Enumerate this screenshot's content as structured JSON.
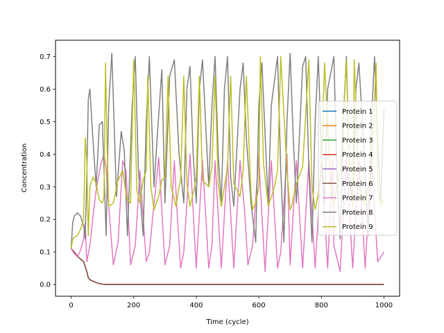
{
  "chart_data": {
    "type": "line",
    "xlabel": "Time (cycle)",
    "ylabel": "Concentration",
    "xlim": [
      -50,
      1050
    ],
    "ylim": [
      -0.036,
      0.75
    ],
    "xticks": [
      0,
      200,
      400,
      600,
      800,
      1000
    ],
    "xtick_labels": [
      "0",
      "200",
      "400",
      "600",
      "800",
      "1000"
    ],
    "yticks": [
      0.0,
      0.1,
      0.2,
      0.3,
      0.4,
      0.5,
      0.6,
      0.7
    ],
    "ytick_labels": [
      "0.0",
      "0.1",
      "0.2",
      "0.3",
      "0.4",
      "0.5",
      "0.6",
      "0.7"
    ],
    "grid": false,
    "legend_position": "center-right",
    "series": [
      {
        "name": "Protein 1",
        "color": "#1f77b4",
        "x": [
          0,
          10,
          20,
          30,
          40,
          50,
          55,
          60,
          70,
          80,
          90,
          100,
          110,
          150,
          300,
          500,
          700,
          900,
          1000
        ],
        "y": [
          0.11,
          0.1,
          0.087,
          0.078,
          0.07,
          0.04,
          0.02,
          0.015,
          0.01,
          0.006,
          0.003,
          0.001,
          0.0,
          0.0,
          0.0,
          0.0,
          0.0,
          0.0,
          0.0
        ]
      },
      {
        "name": "Protein 2",
        "color": "#ff7f0e",
        "x": [
          0,
          10,
          20,
          30,
          40,
          50,
          55,
          60,
          70,
          80,
          90,
          100,
          110,
          150,
          300,
          500,
          700,
          900,
          1000
        ],
        "y": [
          0.11,
          0.1,
          0.087,
          0.078,
          0.07,
          0.04,
          0.02,
          0.015,
          0.01,
          0.006,
          0.003,
          0.001,
          0.0,
          0.0,
          0.0,
          0.0,
          0.0,
          0.0,
          0.0
        ]
      },
      {
        "name": "Protein 3",
        "color": "#2ca02c",
        "x": [
          0,
          10,
          20,
          30,
          40,
          50,
          55,
          60,
          70,
          80,
          90,
          100,
          110,
          150,
          300,
          500,
          700,
          900,
          1000
        ],
        "y": [
          0.11,
          0.1,
          0.087,
          0.078,
          0.07,
          0.04,
          0.02,
          0.015,
          0.01,
          0.006,
          0.003,
          0.001,
          0.0,
          0.0,
          0.0,
          0.0,
          0.0,
          0.0,
          0.0
        ]
      },
      {
        "name": "Protein 4",
        "color": "#d62728",
        "x": [
          0,
          10,
          20,
          30,
          40,
          50,
          55,
          60,
          70,
          80,
          90,
          100,
          110,
          150,
          300,
          500,
          700,
          900,
          1000
        ],
        "y": [
          0.11,
          0.1,
          0.087,
          0.078,
          0.07,
          0.04,
          0.02,
          0.015,
          0.01,
          0.006,
          0.003,
          0.001,
          0.0,
          0.0,
          0.0,
          0.0,
          0.0,
          0.0,
          0.0
        ]
      },
      {
        "name": "Protein 5",
        "color": "#9467bd",
        "x": [
          0,
          10,
          20,
          30,
          40,
          50,
          55,
          60,
          70,
          80,
          90,
          100,
          110,
          150,
          300,
          500,
          700,
          900,
          1000
        ],
        "y": [
          0.11,
          0.1,
          0.087,
          0.078,
          0.07,
          0.04,
          0.02,
          0.015,
          0.01,
          0.006,
          0.003,
          0.001,
          0.0,
          0.0,
          0.0,
          0.0,
          0.0,
          0.0,
          0.0
        ]
      },
      {
        "name": "Protein 6",
        "color": "#8c564b",
        "x": [
          0,
          10,
          20,
          30,
          40,
          50,
          55,
          60,
          70,
          80,
          90,
          100,
          110,
          150,
          300,
          500,
          700,
          900,
          1000
        ],
        "y": [
          0.11,
          0.1,
          0.087,
          0.078,
          0.07,
          0.04,
          0.02,
          0.015,
          0.01,
          0.006,
          0.003,
          0.001,
          0.0,
          0.0,
          0.0,
          0.0,
          0.0,
          0.0,
          0.0
        ]
      },
      {
        "name": "Protein 7",
        "color": "#e377c2",
        "x": [
          0,
          10,
          20,
          30,
          40,
          45,
          50,
          60,
          70,
          80,
          95,
          105,
          112,
          120,
          135,
          150,
          165,
          175,
          180,
          190,
          205,
          220,
          240,
          250,
          260,
          280,
          300,
          315,
          330,
          340,
          350,
          360,
          380,
          400,
          420,
          440,
          450,
          460,
          480,
          500,
          520,
          540,
          555,
          565,
          580,
          600,
          605,
          620,
          640,
          660,
          670,
          690,
          700,
          720,
          740,
          760,
          780,
          800,
          820,
          835,
          840,
          860,
          880,
          900,
          920,
          940,
          960,
          980,
          1000
        ],
        "y": [
          0.11,
          0.095,
          0.085,
          0.105,
          0.14,
          0.19,
          0.07,
          0.12,
          0.21,
          0.29,
          0.37,
          0.4,
          0.36,
          0.24,
          0.06,
          0.13,
          0.38,
          0.35,
          0.27,
          0.06,
          0.12,
          0.35,
          0.07,
          0.1,
          0.2,
          0.39,
          0.06,
          0.12,
          0.38,
          0.2,
          0.05,
          0.1,
          0.4,
          0.05,
          0.38,
          0.05,
          0.12,
          0.38,
          0.05,
          0.38,
          0.05,
          0.38,
          0.22,
          0.06,
          0.12,
          0.4,
          0.3,
          0.04,
          0.38,
          0.05,
          0.1,
          0.4,
          0.06,
          0.38,
          0.05,
          0.38,
          0.05,
          0.38,
          0.05,
          0.38,
          0.12,
          0.04,
          0.39,
          0.05,
          0.38,
          0.05,
          0.39,
          0.07,
          0.1
        ]
      },
      {
        "name": "Protein 8",
        "color": "#7f7f7f",
        "x": [
          0,
          5,
          10,
          20,
          30,
          40,
          45,
          50,
          55,
          60,
          70,
          80,
          90,
          100,
          112,
          120,
          130,
          145,
          160,
          170,
          180,
          195,
          205,
          215,
          230,
          240,
          250,
          265,
          275,
          290,
          300,
          315,
          330,
          345,
          360,
          370,
          380,
          390,
          400,
          410,
          420,
          440,
          450,
          460,
          470,
          480,
          490,
          500,
          510,
          520,
          540,
          550,
          560,
          575,
          590,
          600,
          610,
          620,
          630,
          640,
          660,
          670,
          680,
          690,
          700,
          710,
          720,
          740,
          750,
          760,
          770,
          780,
          790,
          800,
          810,
          820,
          840,
          850,
          860,
          870,
          880,
          890,
          900,
          910,
          920,
          940,
          950,
          960,
          970,
          980,
          990,
          1000
        ],
        "y": [
          0.11,
          0.19,
          0.21,
          0.22,
          0.21,
          0.18,
          0.14,
          0.33,
          0.57,
          0.6,
          0.44,
          0.3,
          0.49,
          0.5,
          0.15,
          0.55,
          0.71,
          0.27,
          0.47,
          0.41,
          0.15,
          0.55,
          0.7,
          0.35,
          0.15,
          0.5,
          0.7,
          0.3,
          0.45,
          0.66,
          0.25,
          0.64,
          0.69,
          0.4,
          0.25,
          0.6,
          0.67,
          0.4,
          0.25,
          0.6,
          0.69,
          0.3,
          0.55,
          0.7,
          0.4,
          0.25,
          0.6,
          0.7,
          0.33,
          0.24,
          0.6,
          0.68,
          0.45,
          0.25,
          0.13,
          0.55,
          0.68,
          0.46,
          0.25,
          0.55,
          0.7,
          0.35,
          0.13,
          0.5,
          0.71,
          0.45,
          0.25,
          0.67,
          0.7,
          0.35,
          0.13,
          0.5,
          0.7,
          0.4,
          0.25,
          0.6,
          0.7,
          0.33,
          0.14,
          0.5,
          0.7,
          0.33,
          0.26,
          0.6,
          0.68,
          0.35,
          0.15,
          0.5,
          0.7,
          0.45,
          0.25,
          0.54
        ]
      },
      {
        "name": "Protein 9",
        "color": "#bcbd22",
        "x": [
          0,
          5,
          10,
          20,
          30,
          40,
          45,
          50,
          55,
          60,
          70,
          80,
          90,
          100,
          105,
          110,
          115,
          120,
          135,
          150,
          165,
          175,
          180,
          190,
          200,
          210,
          220,
          230,
          240,
          245,
          255,
          265,
          280,
          290,
          300,
          310,
          320,
          335,
          345,
          350,
          360,
          370,
          380,
          395,
          400,
          410,
          420,
          440,
          450,
          460,
          470,
          480,
          490,
          500,
          510,
          520,
          540,
          550,
          560,
          575,
          580,
          590,
          600,
          605,
          615,
          630,
          650,
          660,
          670,
          690,
          700,
          705,
          720,
          740,
          760,
          770,
          780,
          790,
          800,
          810,
          830,
          840,
          850,
          860,
          880,
          890,
          900,
          905,
          920,
          940,
          950,
          960,
          975,
          980,
          990,
          1000
        ],
        "y": [
          0.11,
          0.14,
          0.145,
          0.15,
          0.17,
          0.2,
          0.45,
          0.38,
          0.15,
          0.3,
          0.33,
          0.31,
          0.26,
          0.25,
          0.27,
          0.68,
          0.42,
          0.24,
          0.25,
          0.32,
          0.35,
          0.28,
          0.26,
          0.25,
          0.69,
          0.29,
          0.25,
          0.32,
          0.35,
          0.64,
          0.3,
          0.23,
          0.27,
          0.32,
          0.33,
          0.64,
          0.3,
          0.24,
          0.3,
          0.32,
          0.64,
          0.31,
          0.24,
          0.3,
          0.33,
          0.64,
          0.32,
          0.3,
          0.36,
          0.64,
          0.31,
          0.24,
          0.3,
          0.36,
          0.64,
          0.31,
          0.27,
          0.35,
          0.64,
          0.28,
          0.23,
          0.25,
          0.3,
          0.7,
          0.37,
          0.24,
          0.3,
          0.35,
          0.7,
          0.35,
          0.23,
          0.24,
          0.31,
          0.36,
          0.69,
          0.3,
          0.23,
          0.28,
          0.35,
          0.68,
          0.3,
          0.24,
          0.31,
          0.34,
          0.69,
          0.31,
          0.24,
          0.69,
          0.3,
          0.24,
          0.3,
          0.34,
          0.68,
          0.3,
          0.24,
          0.26
        ]
      }
    ]
  }
}
